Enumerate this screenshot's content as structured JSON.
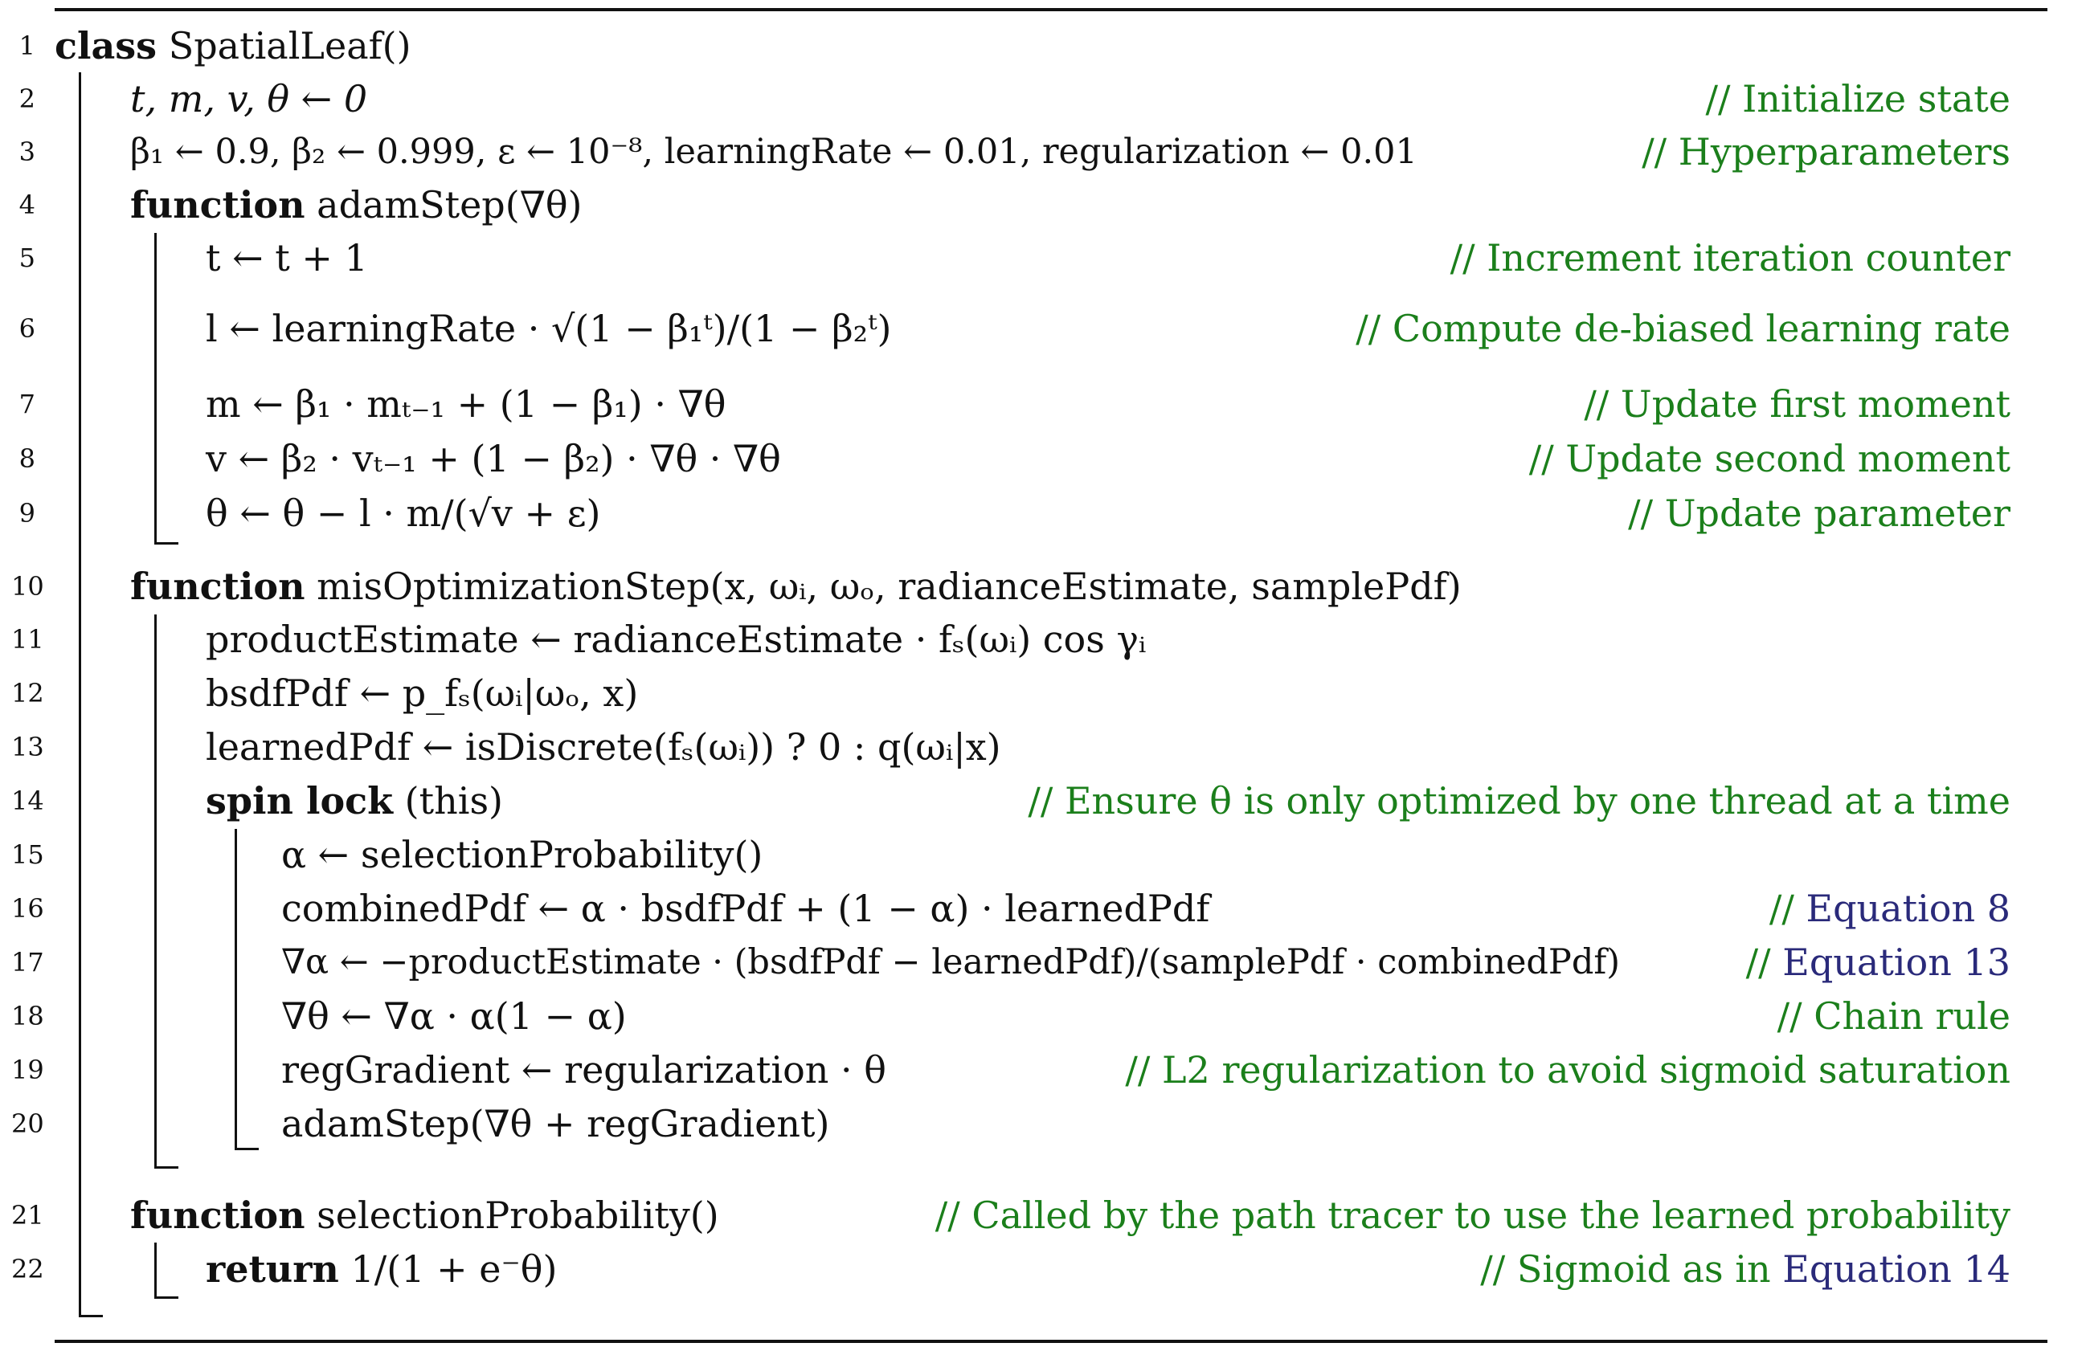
{
  "algorithm": {
    "lines": [
      {
        "num": "1",
        "code": "class SpatialLeaf()",
        "kw": "class",
        "rest": " SpatialLeaf()",
        "comment": ""
      },
      {
        "num": "2",
        "code": "t, m, v, θ ← 0",
        "comment": "// Initialize state"
      },
      {
        "num": "3",
        "code": "β₁ ← 0.9, β₂ ← 0.999, ε ← 10⁻⁸, learningRate ← 0.01, regularization ← 0.01",
        "comment": "// Hyperparameters"
      },
      {
        "num": "4",
        "kw": "function",
        "rest": " adamStep(∇θ)",
        "comment": ""
      },
      {
        "num": "5",
        "code": "t ← t + 1",
        "comment": "// Increment iteration counter"
      },
      {
        "num": "6",
        "code": "l ← learningRate · √(1 − β₁ᵗ)/(1 − β₂ᵗ)",
        "comment": "// Compute de-biased learning rate"
      },
      {
        "num": "7",
        "code": "m ← β₁ · mₜ₋₁ + (1 − β₁) · ∇θ",
        "comment": "// Update first moment"
      },
      {
        "num": "8",
        "code": "v ← β₂ · vₜ₋₁ + (1 − β₂) · ∇θ · ∇θ",
        "comment": "// Update second moment"
      },
      {
        "num": "9",
        "code": "θ ← θ − l · m/(√v + ε)",
        "comment": "// Update parameter"
      },
      {
        "num": "10",
        "kw": "function",
        "rest": " misOptimizationStep(x, ωᵢ, ωₒ, radianceEstimate, samplePdf)",
        "comment": ""
      },
      {
        "num": "11",
        "code": "productEstimate ← radianceEstimate · fₛ(ωᵢ) cos γᵢ",
        "comment": ""
      },
      {
        "num": "12",
        "code": "bsdfPdf ← p_fₛ(ωᵢ|ωₒ, x)",
        "comment": ""
      },
      {
        "num": "13",
        "code": "learnedPdf ← isDiscrete(fₛ(ωᵢ)) ? 0 : q(ωᵢ|x)",
        "comment": ""
      },
      {
        "num": "14",
        "kw": "spin lock",
        "rest": " (this)",
        "comment": "// Ensure θ is only optimized by one thread at a time"
      },
      {
        "num": "15",
        "code": "α ← selectionProbability()",
        "comment": ""
      },
      {
        "num": "16",
        "code": "combinedPdf ← α · bsdfPdf + (1 − α) · learnedPdf",
        "comment_prefix": "// ",
        "comment_ref": "Equation 8"
      },
      {
        "num": "17",
        "code": "∇α ← −productEstimate · (bsdfPdf − learnedPdf)/(samplePdf · combinedPdf)",
        "comment_prefix": "// ",
        "comment_ref": "Equation 13"
      },
      {
        "num": "18",
        "code": "∇θ ← ∇α · α(1 − α)",
        "comment": "// Chain rule"
      },
      {
        "num": "19",
        "code": "regGradient ← regularization · θ",
        "comment": "// L2 regularization to avoid sigmoid saturation"
      },
      {
        "num": "20",
        "code": "adamStep(∇θ + regGradient)",
        "comment": ""
      },
      {
        "num": "21",
        "kw": "function",
        "rest": " selectionProbability()",
        "comment": "// Called by the path tracer to use the learned probability"
      },
      {
        "num": "22",
        "kw": "return",
        "rest": " 1/(1 + e⁻θ)",
        "comment_prefix": "// Sigmoid as in ",
        "comment_ref": "Equation 14"
      }
    ]
  }
}
